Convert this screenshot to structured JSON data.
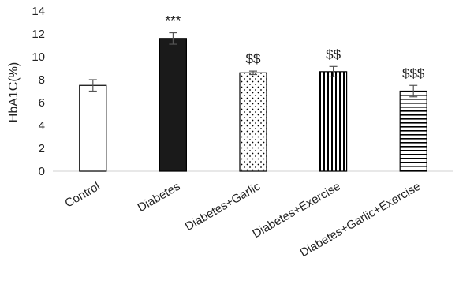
{
  "chart_data": {
    "type": "bar",
    "title": "",
    "xlabel": "",
    "ylabel": "HbA1C(%)",
    "ylim": [
      0,
      14
    ],
    "yticks": [
      0,
      2,
      4,
      6,
      8,
      10,
      12,
      14
    ],
    "grid": false,
    "legend": "none",
    "categories": [
      "Control",
      "Diabetes",
      "Diabetes+Garlic",
      "Diabetes+Exercise",
      "Diabetes+Garlic+Exercise"
    ],
    "values": [
      7.5,
      11.6,
      8.6,
      8.7,
      7.0
    ],
    "errors": [
      0.5,
      0.5,
      0.15,
      0.45,
      0.5
    ],
    "annotations": [
      "",
      "***",
      "$$",
      "$$",
      "$$$"
    ],
    "fill_patterns": [
      "white",
      "solid-black",
      "dots",
      "vertical-lines",
      "horizontal-lines"
    ],
    "colors": {
      "bar_stroke": "#000000",
      "solid_fill": "#1a1a1a",
      "axis": "#d9d9d9",
      "text": "#222222"
    }
  }
}
